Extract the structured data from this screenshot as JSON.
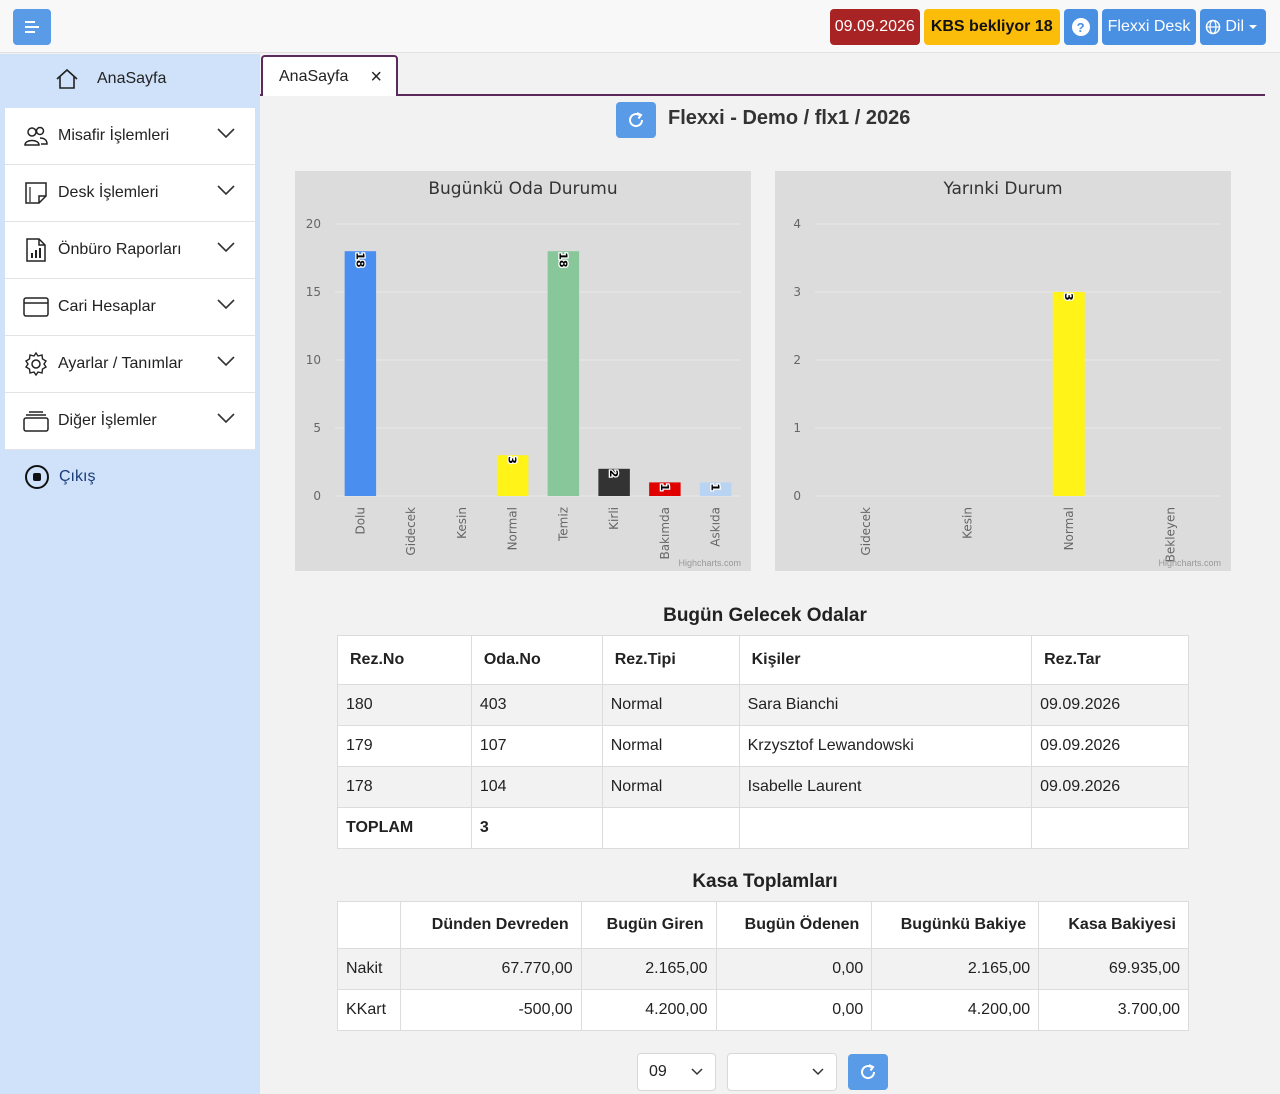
{
  "header": {
    "date": "09.09.2026",
    "kbs": "KBS bekliyor 18",
    "help_label": "?",
    "desk": "Flexxi Desk",
    "lang": "Dil",
    "colors": {
      "date": "#a82323",
      "kbs": "#fbbd0a",
      "primary": "#4a90e2"
    }
  },
  "sidebar": {
    "home": "AnaSayfa",
    "items": [
      {
        "label": "Misafir İşlemleri",
        "icon": "users-icon"
      },
      {
        "label": "Desk İşlemleri",
        "icon": "note-icon"
      },
      {
        "label": "Önbüro Raporları",
        "icon": "report-icon"
      },
      {
        "label": "Cari Hesaplar",
        "icon": "window-icon"
      },
      {
        "label": "Ayarlar / Tanımlar",
        "icon": "gear-icon"
      },
      {
        "label": "Diğer İşlemler",
        "icon": "layers-icon"
      }
    ],
    "logout": "Çıkış"
  },
  "tab": {
    "label": "AnaSayfa",
    "close": "×"
  },
  "page_title": "Flexxi - Demo / flx1 / 2026",
  "chart_data": [
    {
      "type": "bar",
      "title": "Bugünkü Oda Durumu",
      "categories": [
        "Dolu",
        "Gidecek",
        "Kesin",
        "Normal",
        "Temiz",
        "Kirli",
        "Bakımda",
        "Askıda"
      ],
      "values": [
        18,
        0,
        0,
        3,
        18,
        2,
        1,
        1
      ],
      "colors": [
        "#4a8ff0",
        "#4a8ff0",
        "#4a8ff0",
        "#fff318",
        "#88c79a",
        "#333333",
        "#e00000",
        "#b8d4f2"
      ],
      "ylim": [
        0,
        20
      ],
      "yticks": [
        0,
        5,
        10,
        15,
        20
      ],
      "credit": "Highcharts.com"
    },
    {
      "type": "bar",
      "title": "Yarınki Durum",
      "categories": [
        "Gidecek",
        "Kesin",
        "Normal",
        "Bekleyen"
      ],
      "values": [
        0,
        0,
        3,
        0
      ],
      "colors": [
        "#4a8ff0",
        "#4a8ff0",
        "#fff318",
        "#4a8ff0"
      ],
      "ylim": [
        0,
        4
      ],
      "yticks": [
        0,
        1,
        2,
        3,
        4
      ],
      "credit": "Highcharts.com"
    }
  ],
  "arrivals": {
    "title": "Bugün Gelecek Odalar",
    "headers": [
      "Rez.No",
      "Oda.No",
      "Rez.Tipi",
      "Kişiler",
      "Rez.Tar"
    ],
    "rows": [
      [
        "180",
        "403",
        "Normal",
        "Sara Bianchi",
        "09.09.2026"
      ],
      [
        "179",
        "107",
        "Normal",
        "Krzysztof Lewandowski",
        "09.09.2026"
      ],
      [
        "178",
        "104",
        "Normal",
        "Isabelle Laurent",
        "09.09.2026"
      ]
    ],
    "total_label": "TOPLAM",
    "total_value": "3"
  },
  "cash": {
    "title": "Kasa Toplamları",
    "headers": [
      "",
      "Dünden Devreden",
      "Bugün Giren",
      "Bugün Ödenen",
      "Bugünkü Bakiye",
      "Kasa Bakiyesi"
    ],
    "rows": [
      [
        "Nakit",
        "67.770,00",
        "2.165,00",
        "0,00",
        "2.165,00",
        "69.935,00"
      ],
      [
        "KKart",
        "-500,00",
        "4.200,00",
        "0,00",
        "4.200,00",
        "3.700,00"
      ]
    ]
  },
  "filters": {
    "month": "09",
    "second": ""
  }
}
